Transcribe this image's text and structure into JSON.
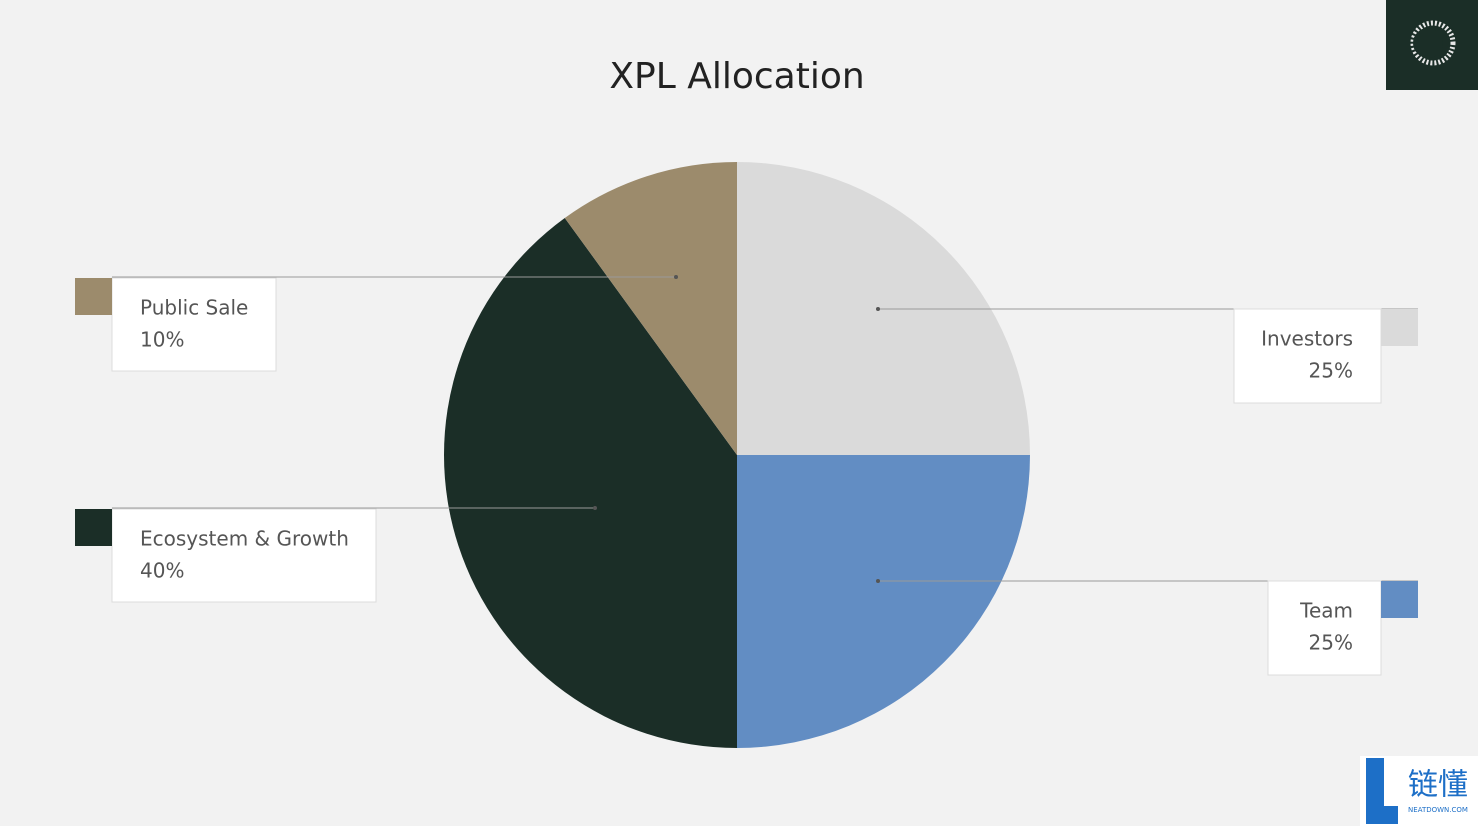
{
  "chart_data": {
    "type": "pie",
    "title": "XPL Allocation",
    "categories": [
      "Investors",
      "Team",
      "Ecosystem & Growth",
      "Public Sale"
    ],
    "values": [
      25,
      25,
      40,
      10
    ],
    "value_labels": [
      "25%",
      "25%",
      "40%",
      "10%"
    ],
    "colors": [
      "#dadada",
      "#628dc3",
      "#1b2e27",
      "#9c8b6c"
    ]
  },
  "watermark": {
    "brand": "链懂",
    "site": "NEATDOWN.COM"
  }
}
